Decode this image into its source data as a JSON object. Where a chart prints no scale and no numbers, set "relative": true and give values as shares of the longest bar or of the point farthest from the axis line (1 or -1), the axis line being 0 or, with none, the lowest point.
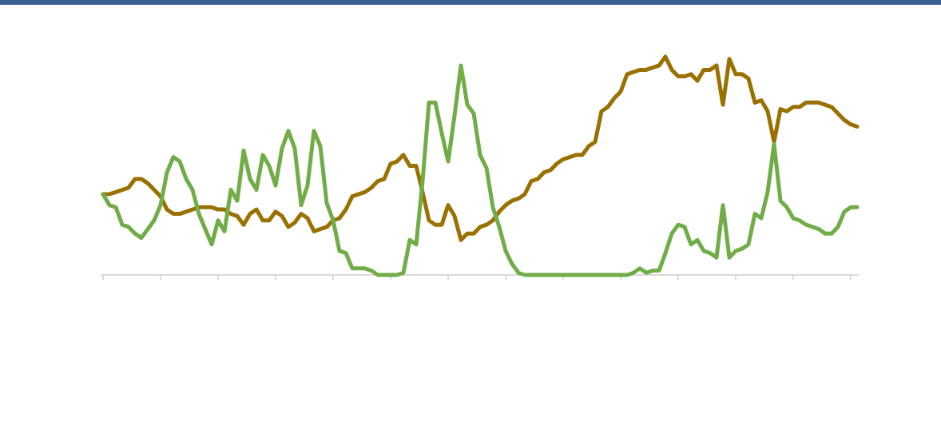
{
  "chart_data": {
    "type": "line",
    "relative": true,
    "categories": [
      null,
      null,
      null,
      null,
      null,
      null,
      null,
      null,
      null,
      null,
      null,
      null,
      null,
      null,
      null,
      null,
      null,
      null,
      null,
      null,
      null,
      null,
      null,
      null,
      null,
      null,
      null,
      null,
      null,
      null,
      null,
      null,
      null,
      null,
      null,
      null,
      null,
      null,
      null,
      null,
      null,
      null,
      null,
      null,
      null,
      null,
      null,
      null,
      null,
      null,
      null,
      null,
      null,
      null,
      null,
      null,
      null,
      null,
      null,
      null,
      null,
      null,
      null,
      null,
      null,
      null,
      null,
      null,
      null,
      null,
      null,
      null,
      null,
      null,
      null,
      null,
      null,
      null,
      null,
      null,
      null,
      null,
      null,
      null,
      null,
      null,
      null,
      null,
      null,
      null,
      null,
      null,
      null,
      null,
      null,
      null,
      null,
      null,
      null,
      null,
      null,
      null,
      null,
      null,
      null,
      null,
      null,
      null,
      null,
      null,
      null,
      null,
      null,
      null,
      null,
      null,
      null,
      null,
      null
    ],
    "series": [
      {
        "color": "#9a7000",
        "values": [
          0.37,
          0.37,
          0.38,
          0.39,
          0.4,
          0.44,
          0.44,
          0.42,
          0.39,
          0.36,
          0.3,
          0.28,
          0.28,
          0.29,
          0.3,
          0.31,
          0.31,
          0.31,
          0.3,
          0.3,
          0.28,
          0.27,
          0.23,
          0.28,
          0.3,
          0.25,
          0.25,
          0.29,
          0.27,
          0.22,
          0.24,
          0.28,
          0.26,
          0.2,
          0.21,
          0.22,
          0.25,
          0.26,
          0.3,
          0.36,
          0.37,
          0.38,
          0.4,
          0.43,
          0.44,
          0.51,
          0.52,
          0.55,
          0.5,
          0.5,
          0.38,
          0.25,
          0.23,
          0.23,
          0.32,
          0.27,
          0.16,
          0.19,
          0.19,
          0.22,
          0.23,
          0.25,
          0.29,
          0.32,
          0.34,
          0.35,
          0.37,
          0.43,
          0.44,
          0.47,
          0.48,
          0.51,
          0.53,
          0.54,
          0.55,
          0.55,
          0.59,
          0.61,
          0.75,
          0.77,
          0.81,
          0.84,
          0.92,
          0.93,
          0.94,
          0.94,
          0.95,
          0.96,
          1,
          0.94,
          0.91,
          0.91,
          0.92,
          0.89,
          0.94,
          0.94,
          0.96,
          0.78,
          0.99,
          0.92,
          0.92,
          0.9,
          0.79,
          0.8,
          0.75,
          0.61,
          0.76,
          0.75,
          0.77,
          0.77,
          0.79,
          0.79,
          0.79,
          0.78,
          0.77,
          0.74,
          0.71,
          0.69,
          0.68
        ]
      },
      {
        "color": "#70ad47",
        "values": [
          0.37,
          0.32,
          0.31,
          0.23,
          0.22,
          0.19,
          0.17,
          0.21,
          0.25,
          0.32,
          0.47,
          0.54,
          0.52,
          0.44,
          0.39,
          0.28,
          0.21,
          0.14,
          0.25,
          0.2,
          0.39,
          0.34,
          0.57,
          0.44,
          0.39,
          0.55,
          0.5,
          0.41,
          0.58,
          0.66,
          0.58,
          0.32,
          0.41,
          0.66,
          0.59,
          0.33,
          0.25,
          0.11,
          0.1,
          0.03,
          0.03,
          0.03,
          0.02,
          0,
          0,
          0,
          0,
          0.01,
          0.16,
          0.14,
          0.43,
          0.79,
          0.79,
          0.65,
          0.52,
          0.73,
          0.96,
          0.78,
          0.74,
          0.55,
          0.49,
          0.31,
          0.22,
          0.11,
          0.05,
          0.01,
          0,
          0,
          0,
          0,
          0,
          0,
          0,
          0,
          0,
          0,
          0,
          0,
          0,
          0,
          0,
          0,
          0,
          0.01,
          0.03,
          0.01,
          0.02,
          0.02,
          0.1,
          0.19,
          0.23,
          0.22,
          0.14,
          0.16,
          0.11,
          0.1,
          0.08,
          0.32,
          0.08,
          0.11,
          0.12,
          0.14,
          0.28,
          0.26,
          0.38,
          0.6,
          0.34,
          0.31,
          0.26,
          0.25,
          0.23,
          0.22,
          0.21,
          0.19,
          0.19,
          0.22,
          0.29,
          0.31,
          0.31
        ]
      }
    ]
  }
}
